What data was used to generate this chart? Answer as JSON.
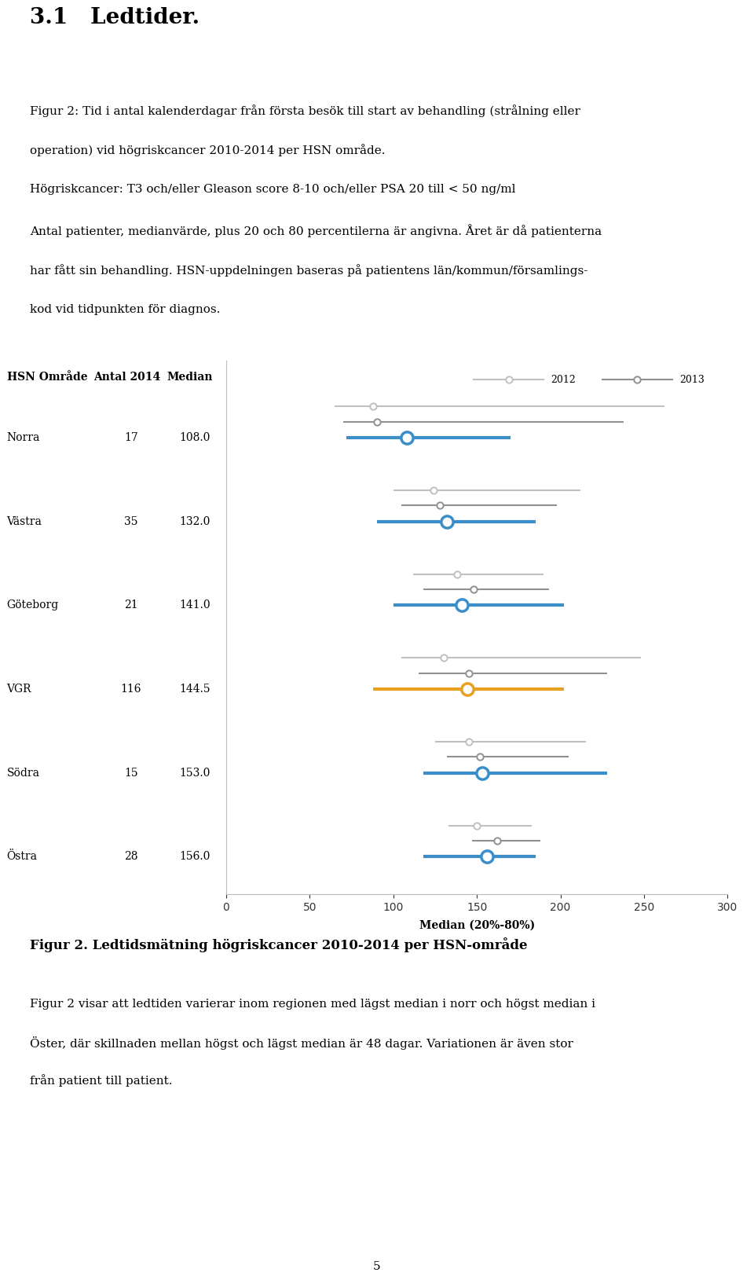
{
  "title_section": "3.1   Ledtider.",
  "para1_line1": "Figur 2: Tid i antal kalenderdagar från första besök till start av behandling (strålning eller",
  "para1_line2": "operation) vid högriskcancer 2010-2014 per HSN område.",
  "para1_line3": "Högriskcancer: T3 och/eller Gleason score 8-10 och/eller PSA 20 till < 50 ng/ml",
  "para1_line4": "Antal patienter, medianvärde, plus 20 och 80 percentilerna är angivna. Året är då patienterna",
  "para1_line5": "har fått sin behandling. HSN-uppdelningen baseras på patientens län/kommun/församlings-",
  "para1_line6": "kod vid tidpunkten för diagnos.",
  "regions": [
    "Norra",
    "Västra",
    "Göteborg",
    "VGR",
    "Södra",
    "Östra"
  ],
  "antal": [
    17,
    35,
    21,
    116,
    15,
    28
  ],
  "median_2014": [
    108.0,
    132.0,
    141.0,
    144.5,
    153.0,
    156.0
  ],
  "p20_2014": [
    72,
    90,
    100,
    88,
    118,
    118
  ],
  "p80_2014": [
    170,
    185,
    202,
    202,
    228,
    185
  ],
  "median_2012": [
    88,
    124,
    138,
    130,
    145,
    150
  ],
  "p20_2012": [
    65,
    100,
    112,
    105,
    125,
    133
  ],
  "p80_2012": [
    262,
    212,
    190,
    248,
    215,
    183
  ],
  "median_2013": [
    90,
    128,
    148,
    145,
    152,
    162
  ],
  "p20_2013": [
    70,
    105,
    118,
    115,
    132,
    147
  ],
  "p80_2013": [
    238,
    198,
    193,
    228,
    205,
    188
  ],
  "vgr_color": "#E8A020",
  "blue_color": "#3B8EC8",
  "gray2012_color": "#C0C0C0",
  "gray2013_color": "#909090",
  "xlim": [
    0,
    300
  ],
  "xticks": [
    0,
    50,
    100,
    150,
    200,
    250,
    300
  ],
  "xlabel": "Median (20%-80%)",
  "fig2_caption": "Figur 2. Ledtidsmätning högriskcancer 2010-2014 per HSN-område",
  "para2_line1": "Figur 2 visar att ledtiden varierar inom regionen med lägst median i norr och högst median i",
  "para2_line2": "Öster, där skillnaden mellan högst och lägst median är 48 dagar. Variationen är även stor",
  "para2_line3": "från patient till patient.",
  "page_num": "5"
}
